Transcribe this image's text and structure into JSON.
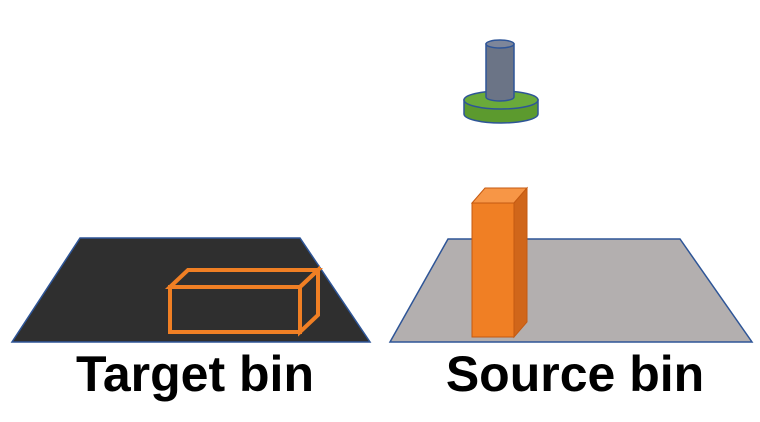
{
  "labels": {
    "target": "Target bin",
    "source": "Source bin"
  },
  "colors": {
    "target_bin_fill": "#2f2f2f",
    "source_bin_fill": "#b3afaf",
    "bin_outline": "#2e5597",
    "box_orange": "#f07f24",
    "box_orange_dark": "#d0661a",
    "box_outline": "#e8701c",
    "gripper_shaft": "#6b7486",
    "gripper_base": "#6aaa3a",
    "gripper_outline": "#2e5597",
    "text": "#000000"
  }
}
